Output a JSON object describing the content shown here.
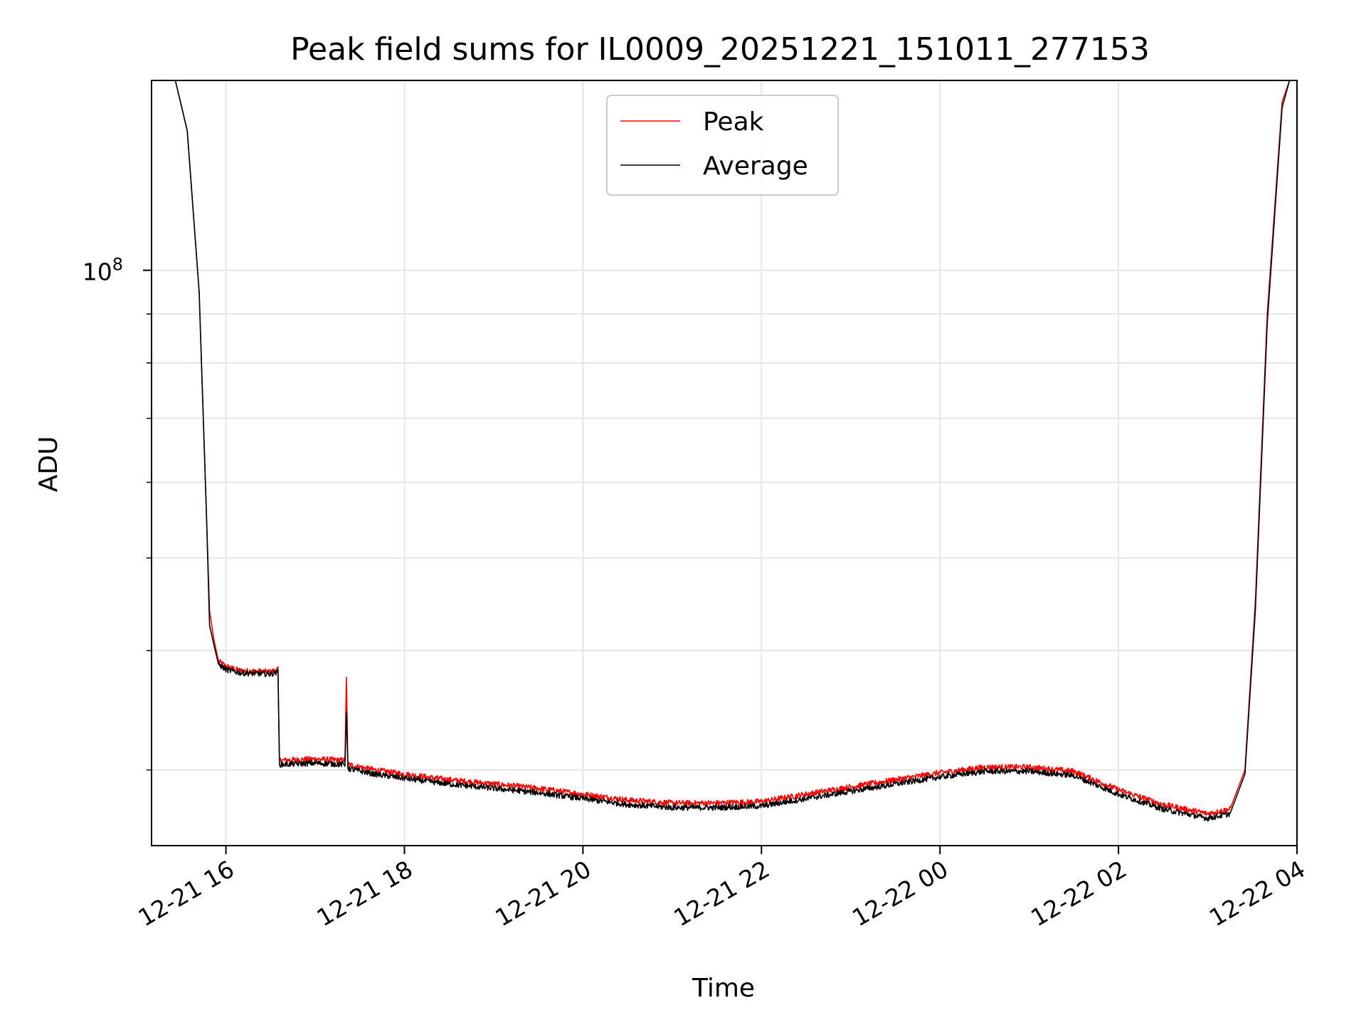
{
  "chart_data": {
    "type": "line",
    "title": "Peak field sums for IL0009_20251221_151011_277153",
    "xlabel": "Time",
    "ylabel": "ADU",
    "y_scale": "log",
    "ylim": [
      25000000,
      158000000
    ],
    "xlim": [
      "12-21 15:10",
      "12-22 04:00"
    ],
    "x_ticks": [
      "12-21 16",
      "12-21 18",
      "12-21 20",
      "12-21 22",
      "12-22 00",
      "12-22 02",
      "12-22 04"
    ],
    "y_ticks": [
      {
        "value": 100000000,
        "base": "10",
        "exp": "8"
      }
    ],
    "grid": true,
    "legend": {
      "placement": "top-center",
      "entries": [
        "Peak",
        "Average"
      ]
    },
    "series": [
      {
        "name": "Peak",
        "color": "#ff0000",
        "x": [
          "12-21 15:10",
          "12-21 15:26",
          "12-21 15:34",
          "12-21 15:42",
          "12-21 15:47",
          "12-21 15:49",
          "12-21 15:52",
          "12-21 15:55",
          "12-21 16:00",
          "12-21 16:10",
          "12-21 16:30",
          "12-21 16:35",
          "12-21 16:36",
          "12-21 17:00",
          "12-21 17:20",
          "12-21 17:21",
          "12-21 17:22",
          "12-21 17:40",
          "12-21 18:00",
          "12-21 18:30",
          "12-21 19:00",
          "12-21 19:30",
          "12-21 20:00",
          "12-21 20:30",
          "12-21 21:00",
          "12-21 21:30",
          "12-21 22:00",
          "12-21 22:30",
          "12-21 23:00",
          "12-21 23:30",
          "12-22 00:00",
          "12-22 00:30",
          "12-22 01:00",
          "12-22 01:30",
          "12-22 02:00",
          "12-22 02:30",
          "12-22 03:00",
          "12-22 03:15",
          "12-22 03:25",
          "12-22 03:32",
          "12-22 03:40",
          "12-22 03:50",
          "12-22 03:55"
        ],
        "values": [
          158000000,
          158000000,
          140000000,
          95000000,
          55000000,
          44000000,
          41000000,
          39000000,
          38500000,
          38100000,
          38000000,
          38200000,
          30700000,
          30800000,
          30700000,
          37500000,
          30400000,
          30000000,
          29700000,
          29300000,
          29000000,
          28700000,
          28300000,
          27900000,
          27700000,
          27700000,
          27800000,
          28300000,
          28800000,
          29300000,
          29800000,
          30200000,
          30200000,
          29900000,
          28600000,
          27600000,
          27000000,
          27300000,
          30000000,
          45000000,
          90000000,
          150000000,
          158000000
        ]
      },
      {
        "name": "Average",
        "color": "#000000",
        "x": [
          "12-21 15:10",
          "12-21 15:26",
          "12-21 15:34",
          "12-21 15:42",
          "12-21 15:47",
          "12-21 15:49",
          "12-21 15:52",
          "12-21 15:55",
          "12-21 16:00",
          "12-21 16:10",
          "12-21 16:30",
          "12-21 16:35",
          "12-21 16:36",
          "12-21 17:00",
          "12-21 17:20",
          "12-21 17:21",
          "12-21 17:22",
          "12-21 17:40",
          "12-21 18:00",
          "12-21 18:30",
          "12-21 19:00",
          "12-21 19:30",
          "12-21 20:00",
          "12-21 20:30",
          "12-21 21:00",
          "12-21 21:30",
          "12-21 22:00",
          "12-21 22:30",
          "12-21 23:00",
          "12-21 23:30",
          "12-22 00:00",
          "12-22 00:30",
          "12-22 01:00",
          "12-22 01:30",
          "12-22 02:00",
          "12-22 02:30",
          "12-22 03:00",
          "12-22 03:15",
          "12-22 03:25",
          "12-22 03:32",
          "12-22 03:40",
          "12-22 03:50",
          "12-22 03:55"
        ],
        "values": [
          158000000,
          158000000,
          140000000,
          95000000,
          55000000,
          42500000,
          40500000,
          38700000,
          38200000,
          37900000,
          37800000,
          38000000,
          30400000,
          30500000,
          30400000,
          34500000,
          30100000,
          29700000,
          29400000,
          29000000,
          28700000,
          28400000,
          28000000,
          27600000,
          27400000,
          27400000,
          27500000,
          28000000,
          28500000,
          29000000,
          29500000,
          29900000,
          29900000,
          29600000,
          28300000,
          27300000,
          26700000,
          27000000,
          29700000,
          44000000,
          88000000,
          148000000,
          158000000
        ]
      }
    ]
  }
}
